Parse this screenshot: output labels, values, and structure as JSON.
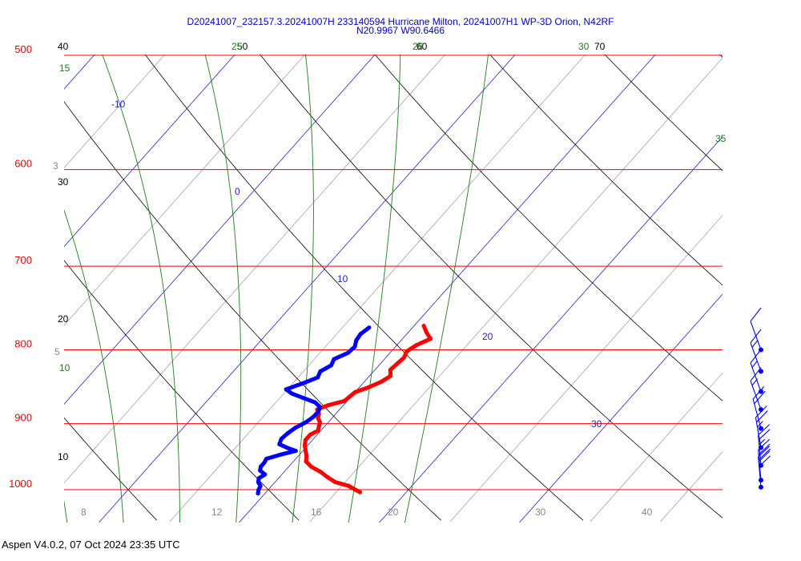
{
  "chart_data": {
    "type": "line",
    "title_line1": "D20241007_232157.3.20241007H 233140594 Hurricane Milton, 20241007H1 WP-3D Orion, N42RF",
    "title_line2": "N20.9967 W90.6466",
    "pressure_levels": [
      {
        "p": 500,
        "label": "500"
      },
      {
        "p": 600,
        "label": "600"
      },
      {
        "p": 700,
        "label": "700"
      },
      {
        "p": 800,
        "label": "800"
      },
      {
        "p": 900,
        "label": "900"
      },
      {
        "p": 1000,
        "label": "1000"
      }
    ],
    "temperature_ticks": [
      {
        "t": 8,
        "label": "8"
      },
      {
        "t": 12,
        "label": "12"
      },
      {
        "t": 16,
        "label": "16"
      },
      {
        "t": 20,
        "label": "20"
      },
      {
        "t": 30,
        "label": "30"
      },
      {
        "t": 40,
        "label": "40"
      }
    ],
    "isotherm_labels": [
      {
        "t": -10,
        "label": "-10",
        "p": 545
      },
      {
        "t": 0,
        "label": "0",
        "p": 625
      },
      {
        "t": 10,
        "label": "10",
        "p": 715
      },
      {
        "t": 20,
        "label": "20",
        "p": 790
      },
      {
        "t": 30,
        "label": "30",
        "p": 905
      }
    ],
    "dry_adiabat_labels": [
      "40",
      "30",
      "20",
      "10",
      "50",
      "60",
      "70"
    ],
    "moist_adiabat_labels": [
      "15",
      "10",
      "25",
      "26",
      "30",
      "35"
    ],
    "mixing_ratio_labels": [
      "3",
      "5"
    ],
    "series": [
      {
        "name": "Temperature",
        "color": "#ff0000",
        "points": [
          [
            770,
            20.7
          ],
          [
            778,
            21.3
          ],
          [
            786,
            22.0
          ],
          [
            794,
            21.4
          ],
          [
            802,
            21.1
          ],
          [
            810,
            21.3
          ],
          [
            818,
            21.2
          ],
          [
            826,
            21.1
          ],
          [
            834,
            21.5
          ],
          [
            842,
            21.2
          ],
          [
            850,
            20.6
          ],
          [
            856,
            20.0
          ],
          [
            862,
            19.9
          ],
          [
            868,
            19.8
          ],
          [
            874,
            18.9
          ],
          [
            880,
            18.4
          ],
          [
            886,
            18.8
          ],
          [
            892,
            19.0
          ],
          [
            898,
            19.4
          ],
          [
            904,
            19.6
          ],
          [
            910,
            19.8
          ],
          [
            916,
            19.5
          ],
          [
            924,
            19.5
          ],
          [
            932,
            19.8
          ],
          [
            940,
            20.2
          ],
          [
            948,
            20.6
          ],
          [
            956,
            20.9
          ],
          [
            964,
            21.6
          ],
          [
            972,
            22.6
          ],
          [
            980,
            23.4
          ],
          [
            988,
            24.3
          ],
          [
            994,
            25.5
          ],
          [
            1000,
            26.2
          ],
          [
            1004,
            26.7
          ]
        ]
      },
      {
        "name": "Dewpoint",
        "color": "#0000ff",
        "points": [
          [
            772,
            16.9
          ],
          [
            780,
            16.7
          ],
          [
            788,
            16.8
          ],
          [
            796,
            17.1
          ],
          [
            804,
            17.0
          ],
          [
            812,
            16.4
          ],
          [
            820,
            16.6
          ],
          [
            828,
            16.2
          ],
          [
            836,
            16.4
          ],
          [
            844,
            15.7
          ],
          [
            852,
            14.9
          ],
          [
            858,
            15.6
          ],
          [
            864,
            16.7
          ],
          [
            870,
            17.8
          ],
          [
            876,
            18.4
          ],
          [
            882,
            18.6
          ],
          [
            890,
            18.6
          ],
          [
            898,
            18.4
          ],
          [
            906,
            18.0
          ],
          [
            914,
            17.8
          ],
          [
            922,
            17.7
          ],
          [
            930,
            17.9
          ],
          [
            936,
            18.8
          ],
          [
            940,
            19.5
          ],
          [
            946,
            18.6
          ],
          [
            952,
            17.9
          ],
          [
            958,
            18.0
          ],
          [
            964,
            18.0
          ],
          [
            970,
            18.2
          ],
          [
            976,
            18.8
          ],
          [
            982,
            18.6
          ],
          [
            988,
            18.8
          ],
          [
            994,
            19.2
          ],
          [
            1000,
            19.3
          ],
          [
            1006,
            19.5
          ]
        ]
      }
    ],
    "wind_barbs": [
      {
        "p": 800,
        "dir": 110,
        "spd": 10
      },
      {
        "p": 828,
        "dir": 110,
        "spd": 15
      },
      {
        "p": 855,
        "dir": 110,
        "spd": 15
      },
      {
        "p": 880,
        "dir": 110,
        "spd": 15
      },
      {
        "p": 907,
        "dir": 105,
        "spd": 20
      },
      {
        "p": 935,
        "dir": 100,
        "spd": 25
      },
      {
        "p": 962,
        "dir": 95,
        "spd": 25
      },
      {
        "p": 985,
        "dir": 95,
        "spd": 30
      },
      {
        "p": 996,
        "dir": 95,
        "spd": 30
      }
    ]
  },
  "footer": {
    "version_text": "Aspen V4.0.2, 07 Oct 2024  23:35 UTC"
  }
}
